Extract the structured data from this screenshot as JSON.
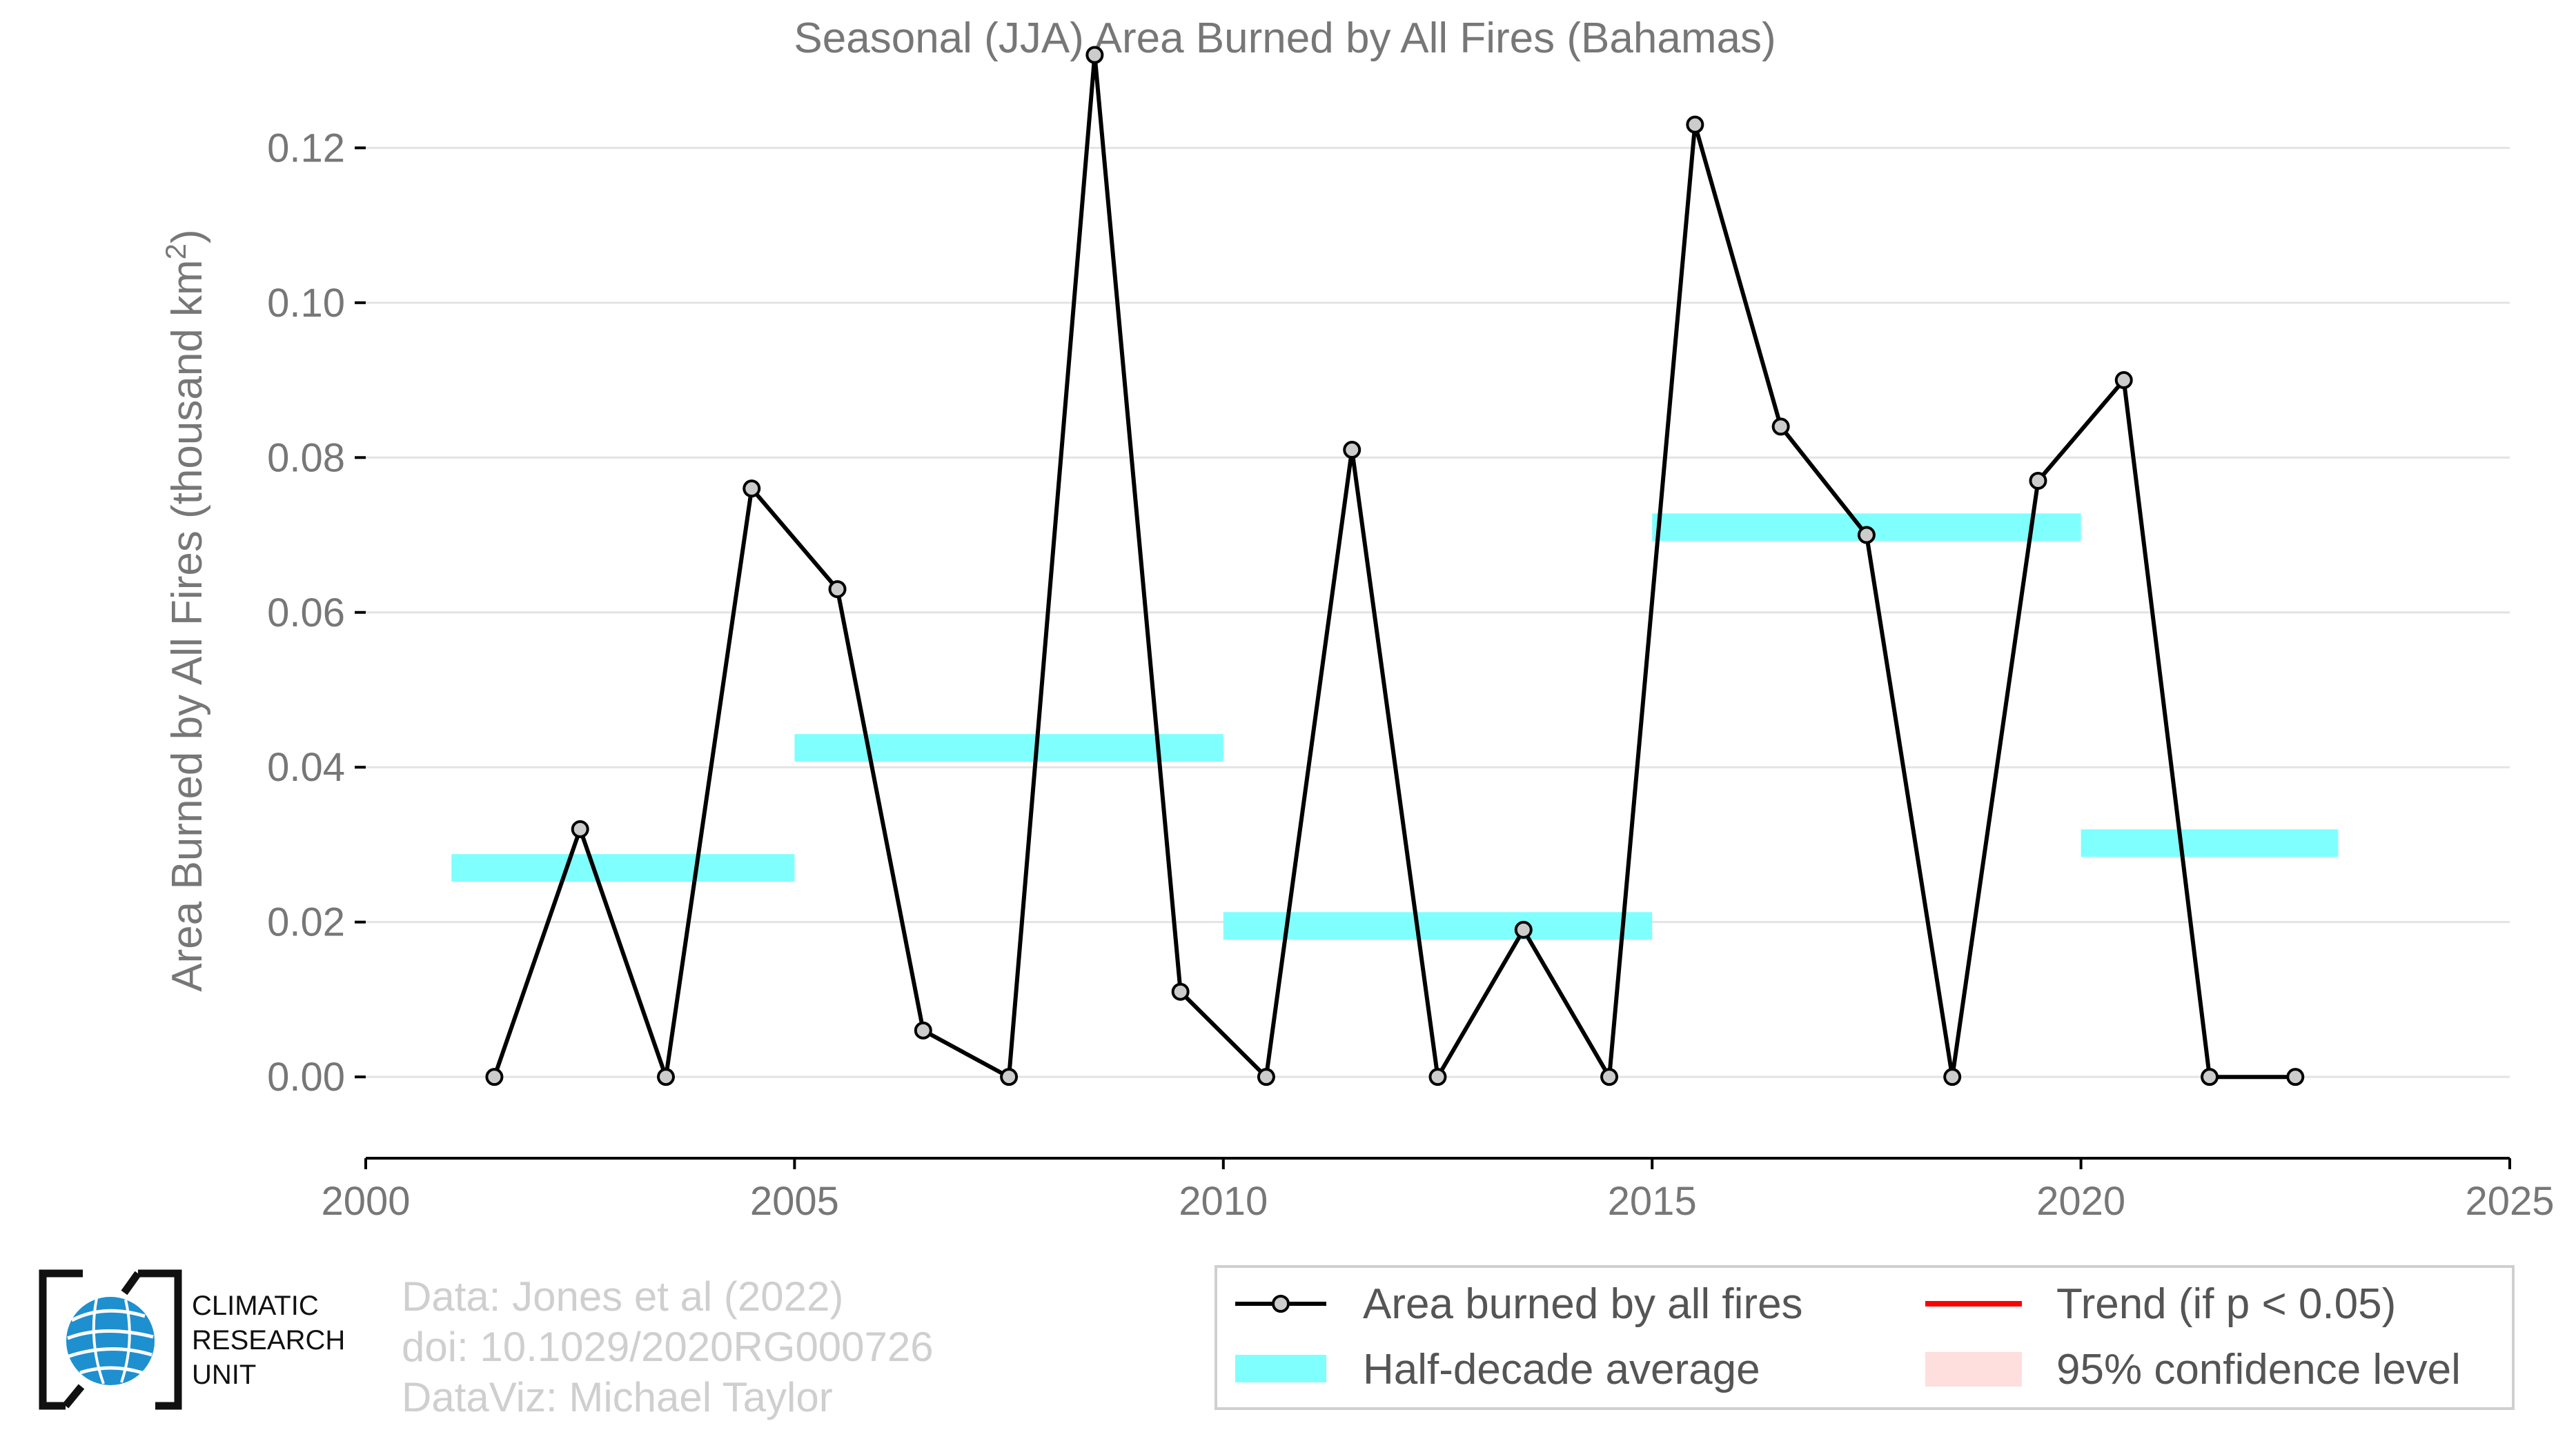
{
  "chart_data": {
    "type": "line",
    "title": "Seasonal (JJA) Area Burned by All Fires (Bahamas)",
    "ylabel_main": "Area Burned by All Fires (thousand km",
    "ylabel_sup": "2",
    "ylabel_close": ")",
    "xlabel": "",
    "xlim": [
      2000,
      2025
    ],
    "ylim": [
      -0.0105,
      0.135
    ],
    "x_ticks": [
      2000,
      2005,
      2010,
      2015,
      2020,
      2025
    ],
    "x_tick_labels": [
      "2000",
      "2005",
      "2010",
      "2015",
      "2020",
      "2025"
    ],
    "y_ticks": [
      0.0,
      0.02,
      0.04,
      0.06,
      0.08,
      0.1,
      0.12
    ],
    "y_tick_labels": [
      "0.00",
      "0.02",
      "0.04",
      "0.06",
      "0.08",
      "0.10",
      "0.12"
    ],
    "grid": "horizontal",
    "legend_position": "bottom-right",
    "series": [
      {
        "name": "Area burned by all fires",
        "kind": "line-markers",
        "color": "#000000",
        "marker_fill": "#cccccc",
        "x": [
          2001.5,
          2002.5,
          2003.5,
          2004.5,
          2005.5,
          2006.5,
          2007.5,
          2008.5,
          2009.5,
          2010.5,
          2011.5,
          2012.5,
          2013.5,
          2014.5,
          2015.5,
          2016.5,
          2017.5,
          2018.5,
          2019.5,
          2020.5,
          2021.5,
          2022.5
        ],
        "y": [
          0.0,
          0.032,
          0.0,
          0.076,
          0.063,
          0.006,
          0.0,
          0.132,
          0.011,
          0.0,
          0.081,
          0.0,
          0.019,
          0.0,
          0.123,
          0.084,
          0.07,
          0.0,
          0.077,
          0.09,
          0.0,
          0.0
        ]
      },
      {
        "name": "Half-decade average",
        "kind": "horizontal-bars",
        "color": "#80ffff",
        "segments": [
          {
            "x_start": 2001,
            "x_end": 2005,
            "y": 0.027
          },
          {
            "x_start": 2005,
            "x_end": 2010,
            "y": 0.0425
          },
          {
            "x_start": 2010,
            "x_end": 2015,
            "y": 0.0195
          },
          {
            "x_start": 2015,
            "x_end": 2020,
            "y": 0.071
          },
          {
            "x_start": 2020,
            "x_end": 2023,
            "y": 0.0302
          }
        ]
      }
    ],
    "legend": [
      {
        "label": "Area burned by all fires",
        "symbol": "line-marker",
        "color": "#000000"
      },
      {
        "label": "Trend (if p < 0.05)",
        "symbol": "line",
        "color": "#ff0000"
      },
      {
        "label": "Half-decade average",
        "symbol": "bar",
        "color": "#80ffff"
      },
      {
        "label": "95% confidence level",
        "symbol": "box",
        "color": "#ffdede"
      }
    ]
  },
  "credits": {
    "line1": "Data: Jones et al (2022)",
    "line2": "doi: 10.1029/2020RG000726",
    "line3": "DataViz: Michael Taylor"
  },
  "logo": {
    "line1": "CLIMATIC",
    "line2": "RESEARCH",
    "line3": "UNIT",
    "globe_color": "#1e90d0"
  }
}
